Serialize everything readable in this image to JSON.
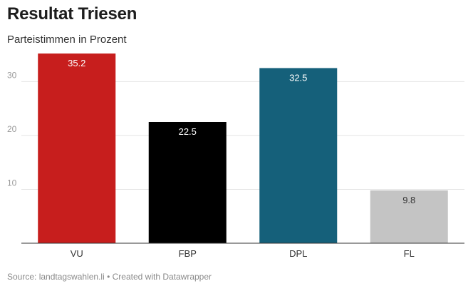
{
  "title": "Resultat Triesen",
  "subtitle": "Parteistimmen in Prozent",
  "source": "Source: landtagswahlen.li • Created with Datawrapper",
  "chart_data": {
    "type": "bar",
    "categories": [
      "VU",
      "FBP",
      "DPL",
      "FL"
    ],
    "values": [
      35.2,
      22.5,
      32.5,
      9.8
    ],
    "value_labels": [
      "35.2",
      "22.5",
      "32.5",
      "9.8"
    ],
    "colors": [
      "#c71e1d",
      "#000000",
      "#15607a",
      "#c4c4c4"
    ],
    "label_colors": [
      "#ffffff",
      "#ffffff",
      "#ffffff",
      "#333333"
    ],
    "yticks": [
      10,
      20,
      30
    ],
    "ytick_labels": [
      "10",
      "20",
      "30"
    ],
    "ylim": [
      0,
      36
    ],
    "title": "Resultat Triesen",
    "xlabel": "",
    "ylabel": "",
    "grid": true
  }
}
